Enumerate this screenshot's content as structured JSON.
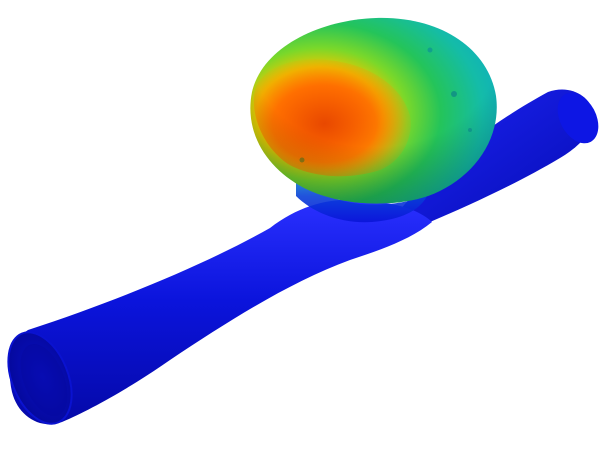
{
  "scene": {
    "subject": "aneurysm-on-vessel",
    "colormap": [
      "#0a14d8",
      "#12a8d2",
      "#2dd07a",
      "#ff7a00",
      "#d83500"
    ],
    "vessel_color": "#0a12d6",
    "background": "#ffffff"
  }
}
